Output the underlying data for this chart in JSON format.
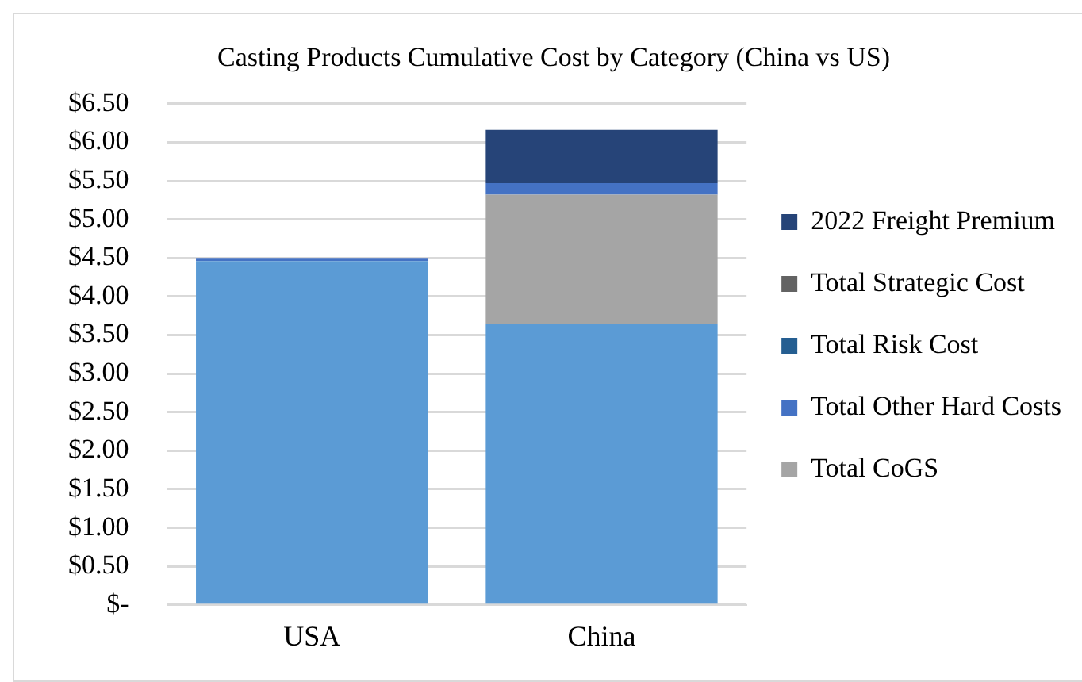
{
  "chart_data": {
    "type": "bar",
    "title": "Casting Products Cumulative Cost by Category (China vs US)",
    "categories": [
      "USA",
      "China"
    ],
    "stacked": true,
    "ylim": [
      0,
      6.5
    ],
    "yticks": [
      {
        "value": 0,
        "label": "$-"
      },
      {
        "value": 0.5,
        "label": "$0.50"
      },
      {
        "value": 1,
        "label": "$1.00"
      },
      {
        "value": 1.5,
        "label": "$1.50"
      },
      {
        "value": 2,
        "label": "$2.00"
      },
      {
        "value": 2.5,
        "label": "$2.50"
      },
      {
        "value": 3,
        "label": "$3.00"
      },
      {
        "value": 3.5,
        "label": "$3.50"
      },
      {
        "value": 4,
        "label": "$4.00"
      },
      {
        "value": 4.5,
        "label": "$4.50"
      },
      {
        "value": 5,
        "label": "$5.00"
      },
      {
        "value": 5.5,
        "label": "$5.50"
      },
      {
        "value": 6,
        "label": "$6.00"
      },
      {
        "value": 6.5,
        "label": "$6.50"
      }
    ],
    "grid": "y",
    "legend": "right",
    "series": [
      {
        "color": "#5b9bd5",
        "values": [
          4.46,
          3.65
        ]
      },
      {
        "name": "Total CoGS",
        "color": "#a5a5a5",
        "values": [
          0,
          1.67
        ]
      },
      {
        "name": "Total Other Hard Costs",
        "color": "#4472c4",
        "values": [
          0.04,
          0.15
        ]
      },
      {
        "name": "Total Risk Cost",
        "color": "#255e91",
        "values": [
          0,
          0
        ]
      },
      {
        "name": "Total Strategic Cost",
        "color": "#636363",
        "values": [
          0,
          0
        ]
      },
      {
        "name": "2022 Freight Premium",
        "color": "#264478",
        "values": [
          0,
          0.69
        ]
      }
    ]
  }
}
